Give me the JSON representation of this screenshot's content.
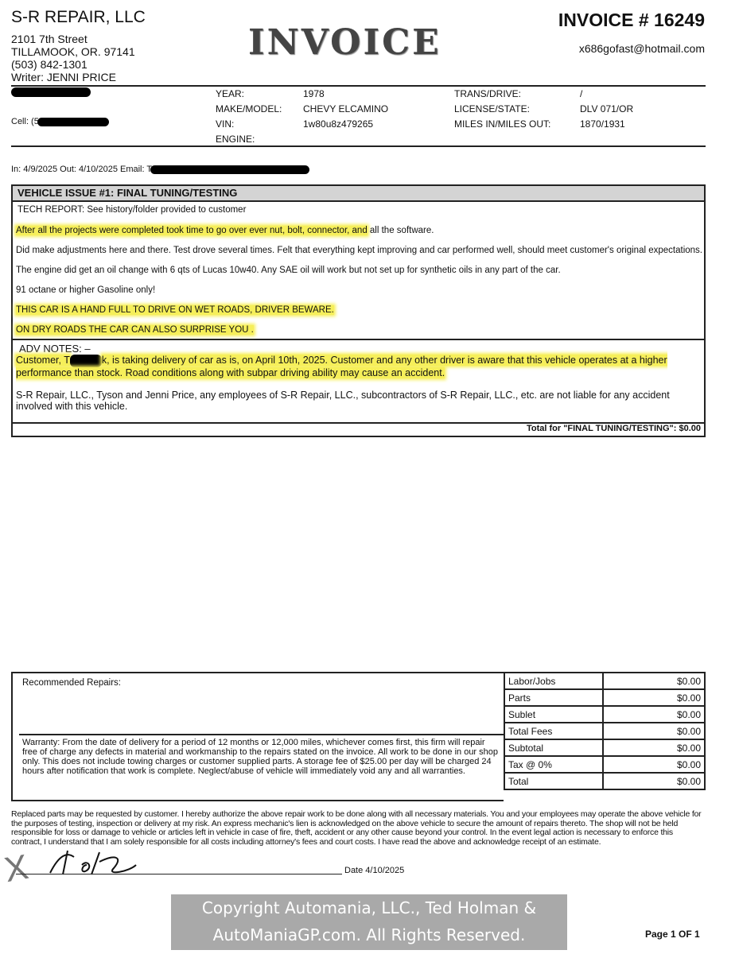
{
  "shop": {
    "name": "S-R REPAIR, LLC",
    "street": "2101 7th Street",
    "city": "TILLAMOOK, OR. 97141",
    "phone": "(503) 842-1301",
    "writer": "Writer: JENNI PRICE",
    "email": "x686gofast@hotmail.com"
  },
  "title": "INVOICE",
  "invoice_number": "INVOICE # 16249",
  "customer": {
    "cell_label": "Cell: (5"
  },
  "vehicle": {
    "year_label": "YEAR:",
    "year": "1978",
    "make_label": "MAKE/MODEL:",
    "make": "CHEVY ELCAMINO",
    "vin_label": "VIN:",
    "vin": "1w80u8z479265",
    "engine_label": "ENGINE:",
    "trans_label": "TRANS/DRIVE:",
    "trans": "/",
    "license_label": "LICENSE/STATE:",
    "license": "DLV 071/OR",
    "miles_label": "MILES IN/MILES OUT:",
    "miles": "1870/1931"
  },
  "dates_line": "In: 4/9/2025 Out: 4/10/2025 Email: T",
  "issue": {
    "header": "VEHICLE ISSUE #1: FINAL TUNING/TESTING",
    "tech_report": "TECH REPORT: See history/folder provided to customer",
    "p1_hl": "After all the projects were completed took time to go over ever nut, bolt, connector, and",
    "p1_rest": " all the software.",
    "p2": "Did make adjustments here and there. Test drove several times. Felt that everything kept improving and car performed well, should meet customer's original expectations.",
    "p3": "The engine did get an oil change with 6 qts of Lucas 10w40. Any SAE oil will work but not set up for synthetic oils in any part of the car.",
    "p4": "91 octane or higher Gasoline only!",
    "p5": "THIS CAR IS A HAND FULL TO DRIVE ON WET ROADS, DRIVER BEWARE.",
    "p6": "ON DRY ROADS THE CAR CAN ALSO SURPRISE YOU .",
    "adv_label": "ADV NOTES: –",
    "adv_a": "Customer, T",
    "adv_b": "k, is taking delivery of car as is, on April 10th, 2025. Customer and any other driver is aware that this vehicle operates at a higher performance than stock. Road conditions along with subpar driving ability may cause an accident.",
    "liability": "S-R Repair, LLC., Tyson and Jenni Price, any employees of S-R Repair, LLC., subcontractors of S-R Repair, LLC., etc. are not liable for any accident involved with this vehicle.",
    "total": "Total for \"FINAL TUNING/TESTING\": $0.00"
  },
  "recommended_label": "Recommended Repairs:",
  "warranty": "Warranty: From the date of delivery for a period of 12 months or 12,000 miles, whichever comes first, this firm will repair free of charge any defects in material and workmanship to the repairs stated on the invoice. All work to be done in our shop only. This does not include towing charges or customer supplied parts. A storage fee of $25.00 per day will be charged 24 hours after notification that work is complete. Neglect/abuse of vehicle will immediately void any and all warranties.",
  "totals": [
    {
      "label": "Labor/Jobs",
      "value": "$0.00"
    },
    {
      "label": "Parts",
      "value": "$0.00"
    },
    {
      "label": "Sublet",
      "value": "$0.00"
    },
    {
      "label": "Total Fees",
      "value": "$0.00"
    },
    {
      "label": "Subtotal",
      "value": "$0.00"
    },
    {
      "label": "Tax @ 0%",
      "value": "$0.00"
    },
    {
      "label": "Total",
      "value": "$0.00"
    }
  ],
  "authorization": "Replaced parts may be requested by customer. I hereby authorize the above repair work to be done along with all necessary materials. You and your employees may operate the above vehicle for the purposes of testing, inspection or delivery at my risk. An express mechanic's lien is acknowledged on the above vehicle to secure the amount of repairs thereto. The shop will not be held responsible for loss or damage to vehicle or articles left in vehicle in case of fire, theft, accident or any other cause beyond your control. In the event legal action is necessary to enforce this contract, I understand that I am solely responsible for all costs including attorney's fees and court costs. I have read the above and acknowledge receipt of an estimate.",
  "signature_x": "X",
  "date": "Date 4/10/2025",
  "watermark": {
    "line1": "Copyright Automania, LLC., Ted Holman &",
    "line2": "AutoManiaGP.com.  All Rights Reserved."
  },
  "page": "Page 1 OF 1",
  "colors": {
    "highlight": "#f6ef5a",
    "header_bar": "#d4d4d4",
    "watermark_bg": "#a9a9a9"
  }
}
